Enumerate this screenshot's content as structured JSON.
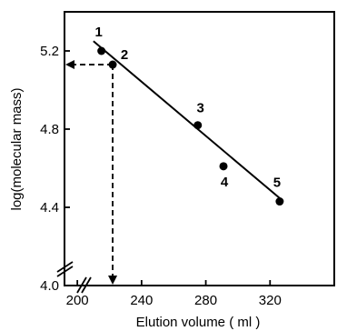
{
  "chart_data": {
    "type": "scatter",
    "title": "",
    "xlabel": "Elution volume ( ml )",
    "ylabel": "log(molecular mass)",
    "xlim": [
      192,
      360
    ],
    "ylim": [
      4.0,
      5.4
    ],
    "axis_break": "both axes, near origin",
    "grid": false,
    "x_ticks": [
      {
        "value": 200,
        "label": "200"
      },
      {
        "value": 240,
        "label": "240"
      },
      {
        "value": 280,
        "label": "280"
      },
      {
        "value": 320,
        "label": "320"
      }
    ],
    "y_ticks": [
      {
        "value": 4.0,
        "label": "4.0"
      },
      {
        "value": 4.4,
        "label": "4.4"
      },
      {
        "value": 4.8,
        "label": "4.8"
      },
      {
        "value": 5.2,
        "label": "5.2"
      }
    ],
    "points": [
      {
        "label": "1",
        "x": 215,
        "y": 5.2
      },
      {
        "label": "2",
        "x": 222,
        "y": 5.13
      },
      {
        "label": "3",
        "x": 275,
        "y": 4.82
      },
      {
        "label": "4",
        "x": 291,
        "y": 4.61
      },
      {
        "label": "5",
        "x": 326,
        "y": 4.43
      }
    ],
    "fit_line": {
      "x1": 210,
      "y1": 5.25,
      "x2": 327,
      "y2": 4.44
    },
    "reference": {
      "x": 222,
      "y": 5.13,
      "style": "dashed arrows to both axes"
    }
  }
}
